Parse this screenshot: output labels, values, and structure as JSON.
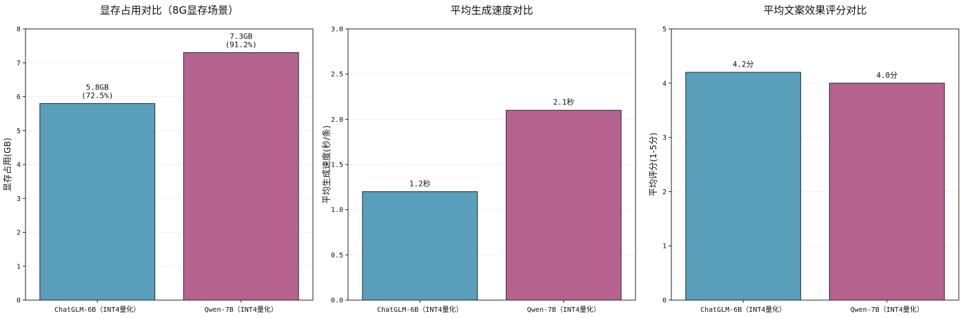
{
  "chart_data": [
    {
      "type": "bar",
      "title": "显存占用对比（8G显存场景）",
      "ylabel": "显存占用(GB)",
      "ylim": [
        0,
        8
      ],
      "yticks": [
        "0",
        "1",
        "2",
        "3",
        "4",
        "5",
        "6",
        "7",
        "8"
      ],
      "categories": [
        "ChatGLM-6B（INT4量化）",
        "Qwen-7B（INT4量化）"
      ],
      "values": [
        5.8,
        7.3
      ],
      "value_labels": [
        [
          "5.8GB",
          "(72.5%)"
        ],
        [
          "7.3GB",
          "(91.2%)"
        ]
      ],
      "colors": [
        "#5a9fbc",
        "#b5638e"
      ],
      "grid": true
    },
    {
      "type": "bar",
      "title": "平均生成速度对比",
      "ylabel": "平均生成速度(秒/条)",
      "ylim": [
        0,
        3.0
      ],
      "yticks": [
        "0.0",
        "0.5",
        "1.0",
        "1.5",
        "2.0",
        "2.5",
        "3.0"
      ],
      "categories": [
        "ChatGLM-6B（INT4量化）",
        "Qwen-7B（INT4量化）"
      ],
      "values": [
        1.2,
        2.1
      ],
      "value_labels": [
        [
          "1.2秒"
        ],
        [
          "2.1秒"
        ]
      ],
      "colors": [
        "#5a9fbc",
        "#b5638e"
      ],
      "grid": true
    },
    {
      "type": "bar",
      "title": "平均文案效果评分对比",
      "ylabel": "平均评分(1-5分)",
      "ylim": [
        0,
        5
      ],
      "yticks": [
        "0",
        "1",
        "2",
        "3",
        "4",
        "5"
      ],
      "categories": [
        "ChatGLM-6B（INT4量化）",
        "Qwen-7B（INT4量化）"
      ],
      "values": [
        4.2,
        4.0
      ],
      "value_labels": [
        [
          "4.2分"
        ],
        [
          "4.0分"
        ]
      ],
      "colors": [
        "#5a9fbc",
        "#b5638e"
      ],
      "grid": true
    }
  ]
}
